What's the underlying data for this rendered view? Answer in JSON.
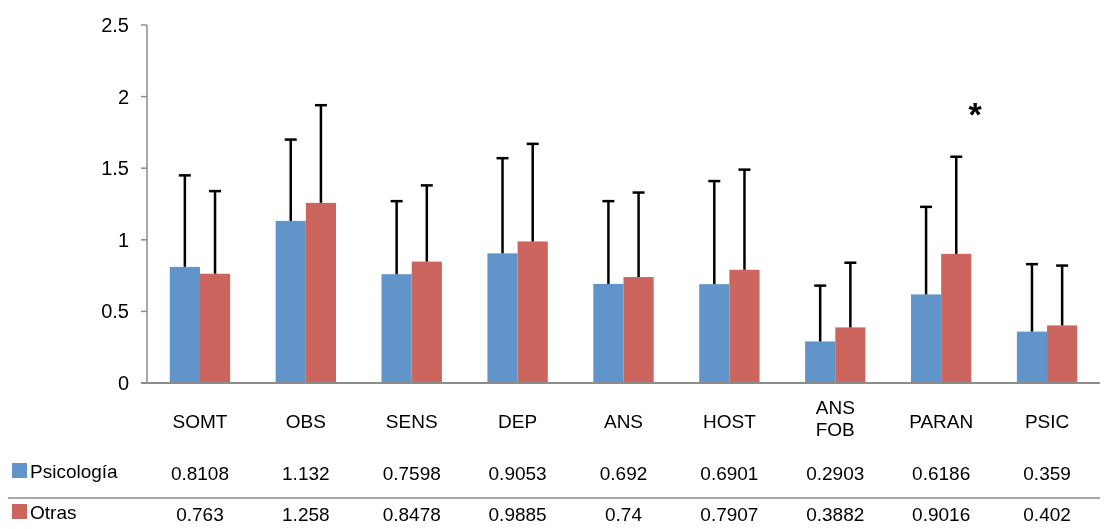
{
  "chart_data": {
    "type": "bar",
    "categories": [
      "SOMT",
      "OBS",
      "SENS",
      "DEP",
      "ANS",
      "HOST",
      "ANS FOB",
      "PARAN",
      "PSIC"
    ],
    "series": [
      {
        "name": "Psicología",
        "color": "#6195c9",
        "values": [
          0.8108,
          1.132,
          0.7598,
          0.9053,
          0.692,
          0.6901,
          0.2903,
          0.6186,
          0.359
        ],
        "errors": [
          [
            0.8108,
            1.45
          ],
          [
            1.132,
            1.7
          ],
          [
            0.7598,
            1.27
          ],
          [
            0.9053,
            1.57
          ],
          [
            0.692,
            1.27
          ],
          [
            0.6901,
            1.41
          ],
          [
            0.2903,
            0.68
          ],
          [
            0.6186,
            1.23
          ],
          [
            0.359,
            0.83
          ]
        ]
      },
      {
        "name": "Otras",
        "color": "#cc655e",
        "values": [
          0.763,
          1.258,
          0.8478,
          0.9885,
          0.74,
          0.7907,
          0.3882,
          0.9016,
          0.402
        ],
        "errors": [
          [
            0.763,
            1.34
          ],
          [
            1.258,
            1.94
          ],
          [
            0.8478,
            1.38
          ],
          [
            0.9885,
            1.67
          ],
          [
            0.74,
            1.33
          ],
          [
            0.7907,
            1.49
          ],
          [
            0.3882,
            0.84
          ],
          [
            0.9016,
            1.58
          ],
          [
            0.402,
            0.82
          ]
        ]
      }
    ],
    "ylim": [
      0,
      2.5
    ],
    "yticks": [
      0,
      0.5,
      1,
      1.5,
      2,
      2.5
    ],
    "grid": false,
    "legend": "bottom",
    "data_labels": true,
    "annotations": [
      "*"
    ]
  }
}
